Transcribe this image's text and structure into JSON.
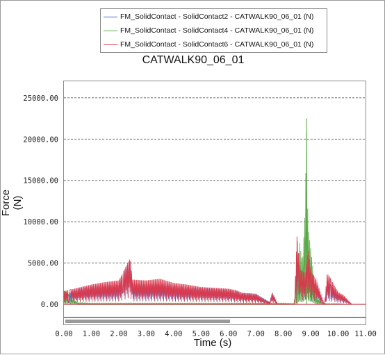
{
  "chart_data": {
    "type": "line",
    "title": "CATWALK90_06_01",
    "xlabel": "Time (s)",
    "ylabel": "Force (N)",
    "xlim": [
      0,
      11
    ],
    "ylim": [
      -1500,
      27000
    ],
    "x_ticks": [
      "0.00",
      "1.00",
      "2.00",
      "3.00",
      "4.00",
      "5.00",
      "6.00",
      "7.00",
      "8.00",
      "9.00",
      "10.00",
      "11.00"
    ],
    "y_ticks": [
      "0.00",
      "5000.00",
      "10000.00",
      "15000.00",
      "20000.00",
      "25000.00"
    ],
    "y_tick_values": [
      0,
      5000,
      10000,
      15000,
      20000,
      25000
    ],
    "grid": "horizontal dashed",
    "legend_position": "top",
    "series": [
      {
        "name": "FM_SolidContact - SolidContact2 - CATWALK90_06_01 (N)",
        "color": "#4a62c6",
        "x": [
          0.0,
          0.5,
          1.0,
          1.5,
          2.0,
          2.42,
          2.5,
          3.0,
          3.5,
          4.0,
          4.5,
          5.0,
          5.5,
          6.0,
          6.3,
          6.5,
          7.0,
          7.5,
          7.6,
          7.8,
          8.4,
          8.5,
          8.6,
          8.8,
          8.9,
          9.0,
          9.2,
          9.5,
          9.6,
          10.0,
          10.2,
          10.5,
          11.0
        ],
        "y": [
          1000,
          1900,
          2200,
          2300,
          2400,
          5500,
          2500,
          2400,
          2500,
          2300,
          2100,
          2000,
          1900,
          1800,
          1600,
          1400,
          1300,
          300,
          1500,
          0,
          0,
          6000,
          3500,
          3300,
          5000,
          3000,
          2500,
          0,
          2800,
          1300,
          1000,
          0,
          0
        ]
      },
      {
        "name": "FM_SolidContact - SolidContact4 - CATWALK90_06_01 (N)",
        "color": "#5aaa48",
        "x": [
          0.0,
          0.5,
          1.0,
          1.5,
          2.0,
          2.5,
          3.0,
          3.5,
          4.0,
          4.5,
          5.0,
          5.5,
          6.0,
          6.5,
          7.0,
          7.5,
          8.0,
          8.4,
          8.5,
          8.6,
          8.7,
          8.8,
          8.85,
          8.9,
          9.0,
          9.1,
          9.2,
          9.5,
          10.0,
          10.5,
          11.0
        ],
        "y": [
          1700,
          200,
          150,
          150,
          150,
          150,
          150,
          150,
          150,
          150,
          150,
          150,
          150,
          150,
          150,
          150,
          150,
          100,
          3500,
          7500,
          5000,
          11500,
          22500,
          9500,
          6800,
          3800,
          800,
          100,
          100,
          0,
          0
        ]
      },
      {
        "name": "FM_SolidContact - SolidContact6 - CATWALK90_06_01 (N)",
        "color": "#d93a4e",
        "x": [
          0.0,
          0.5,
          1.0,
          1.5,
          2.0,
          2.42,
          2.5,
          3.0,
          3.5,
          4.0,
          4.5,
          5.0,
          5.5,
          6.0,
          6.3,
          6.5,
          7.0,
          7.5,
          7.6,
          7.8,
          8.4,
          8.5,
          8.6,
          8.8,
          8.9,
          9.0,
          9.2,
          9.5,
          9.6,
          10.0,
          10.2,
          10.5,
          11.0
        ],
        "y": [
          1600,
          2000,
          2400,
          2700,
          2900,
          5600,
          3000,
          2900,
          3100,
          2600,
          2400,
          2100,
          2000,
          1900,
          1700,
          1400,
          1250,
          200,
          1450,
          0,
          0,
          8200,
          4200,
          3800,
          6700,
          4000,
          3000,
          0,
          3800,
          1500,
          1100,
          0,
          0
        ]
      }
    ]
  },
  "scrollbar": {
    "position_fraction": 0.55
  }
}
